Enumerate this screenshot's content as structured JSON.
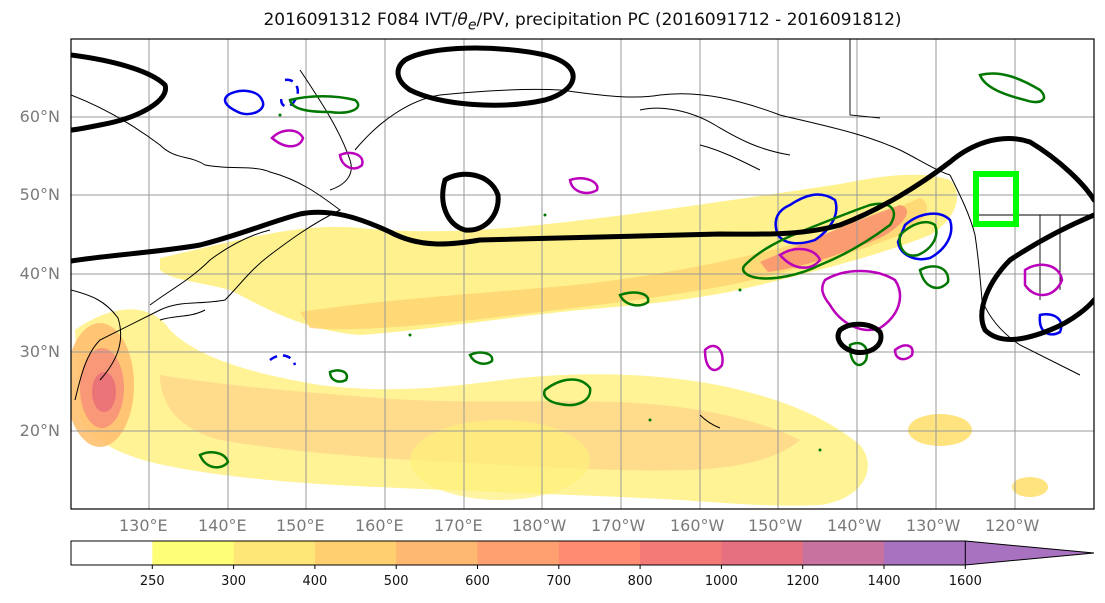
{
  "title": {
    "prefix": "2016091312 F084 IVT/",
    "theta": "θ",
    "sub": "e",
    "suffix": "/PV, precipitation PC (2016091712 - 2016091812)"
  },
  "map": {
    "lat_labels": [
      "60°N",
      "50°N",
      "40°N",
      "30°N",
      "20°N"
    ],
    "lon_labels": [
      "130°E",
      "140°E",
      "150°E",
      "160°E",
      "170°E",
      "180°W",
      "170°W",
      "160°W",
      "150°W",
      "140°W",
      "130°W",
      "120°W"
    ],
    "target_box_color": "#00ff00",
    "colors": {
      "coast": "#000000",
      "ivt_contour": "#000000",
      "positive_anomaly": "#007700",
      "negative_anomaly": "#0000ee",
      "pv_contour": "#bb00bb",
      "grid": "#999999"
    }
  },
  "colorbar": {
    "ticks": [
      "250",
      "300",
      "400",
      "500",
      "600",
      "700",
      "800",
      "1000",
      "1200",
      "1400",
      "1600"
    ],
    "colors": [
      "#ffffff",
      "#ffff77",
      "#ffe777",
      "#ffcf70",
      "#ffb870",
      "#ffa070",
      "#ff8c70",
      "#f47a78",
      "#e77080",
      "#c872a0",
      "#a872c0"
    ]
  }
}
